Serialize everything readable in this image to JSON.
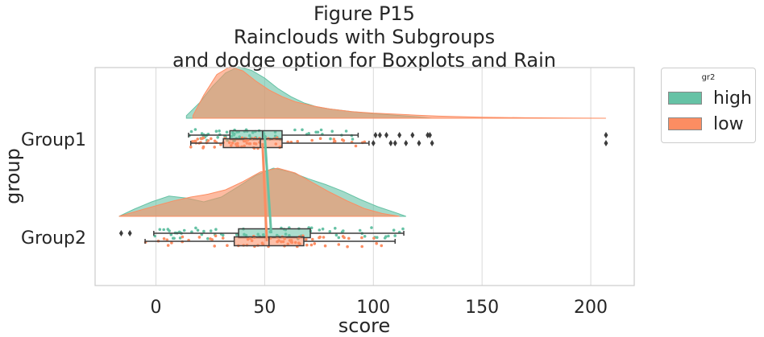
{
  "chart_data": {
    "type": "raincloud",
    "title": [
      "Figure P15",
      "Rainclouds with Subgroups",
      "and dodge option for Boxplots and Rain"
    ],
    "xlabel": "score",
    "ylabel": "group",
    "xlim": [
      -28,
      220
    ],
    "xticks": [
      0,
      50,
      100,
      150,
      200
    ],
    "grid": "vertical",
    "categories": [
      "Group1",
      "Group2"
    ],
    "legend": {
      "title": "gr2",
      "placement": "outside-upper-right",
      "entries": [
        "high",
        "low"
      ]
    },
    "colors": {
      "high": "#66c2a5",
      "low": "#fc8d62",
      "box_edge": "#3c3c3c",
      "spine": "#cccccc",
      "grid": "#d9d9d9"
    },
    "series": [
      {
        "name": "high",
        "group": "Group1",
        "density": {
          "x": [
            14,
            20,
            26,
            32,
            38,
            44,
            50,
            56,
            62,
            68,
            74,
            80,
            90,
            100,
            110,
            120,
            127
          ],
          "y": [
            0.05,
            0.3,
            0.62,
            0.88,
            1.0,
            0.93,
            0.78,
            0.58,
            0.42,
            0.3,
            0.22,
            0.18,
            0.13,
            0.09,
            0.06,
            0.03,
            0.0
          ]
        },
        "box": {
          "whislo": 15,
          "q1": 34,
          "med": 49,
          "q3": 58,
          "whishi": 93
        },
        "fliers": [
          101,
          103,
          106,
          112,
          118,
          125,
          126,
          207
        ],
        "mean": 50
      },
      {
        "name": "low",
        "group": "Group1",
        "density": {
          "x": [
            17,
            22,
            28,
            34,
            40,
            46,
            52,
            58,
            64,
            72,
            80,
            90,
            100,
            110,
            120,
            130,
            150,
            170,
            190,
            207
          ],
          "y": [
            0.05,
            0.45,
            0.85,
            1.0,
            0.92,
            0.72,
            0.55,
            0.42,
            0.32,
            0.24,
            0.18,
            0.13,
            0.1,
            0.08,
            0.06,
            0.04,
            0.02,
            0.01,
            0.005,
            0.0
          ]
        },
        "box": {
          "whislo": 16,
          "q1": 31,
          "med": 48,
          "q3": 58,
          "whishi": 98
        },
        "fliers": [
          100,
          108,
          110,
          115,
          121,
          127,
          207
        ],
        "mean": 49
      },
      {
        "name": "high",
        "group": "Group2",
        "density": {
          "x": [
            -17,
            -10,
            -2,
            6,
            14,
            22,
            30,
            38,
            46,
            54,
            62,
            70,
            78,
            86,
            94,
            102,
            110,
            115
          ],
          "y": [
            0.0,
            0.15,
            0.3,
            0.42,
            0.38,
            0.3,
            0.4,
            0.62,
            0.85,
            1.0,
            0.92,
            0.78,
            0.66,
            0.52,
            0.35,
            0.2,
            0.08,
            0.0
          ]
        },
        "box": {
          "whislo": -1,
          "q1": 38,
          "med": 51,
          "q3": 71,
          "whishi": 114
        },
        "fliers": [
          -12,
          -16
        ],
        "mean": 53
      },
      {
        "name": "low",
        "group": "Group2",
        "density": {
          "x": [
            -17,
            -8,
            0,
            8,
            16,
            24,
            32,
            40,
            48,
            56,
            64,
            72,
            80,
            88,
            96,
            104,
            112
          ],
          "y": [
            0.0,
            0.12,
            0.22,
            0.32,
            0.4,
            0.46,
            0.55,
            0.72,
            0.92,
            1.0,
            0.9,
            0.7,
            0.5,
            0.32,
            0.16,
            0.06,
            0.0
          ]
        },
        "box": {
          "whislo": -5,
          "q1": 36,
          "med": 52,
          "q3": 68,
          "whishi": 110
        },
        "fliers": [],
        "mean": 51
      }
    ]
  }
}
